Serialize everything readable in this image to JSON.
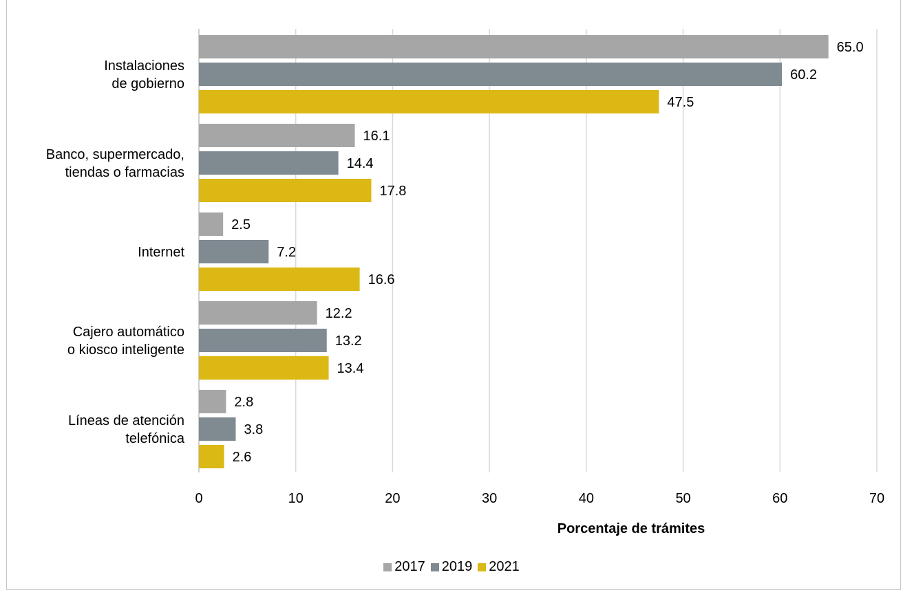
{
  "chart_data": {
    "type": "bar",
    "orientation": "horizontal",
    "categories": [
      [
        "Instalaciones",
        "de gobierno"
      ],
      [
        "Banco, supermercado,",
        "tiendas o farmacias"
      ],
      [
        "Internet"
      ],
      [
        "Cajero automático",
        "o kiosco inteligente"
      ],
      [
        "Líneas de atención",
        "telefónica"
      ]
    ],
    "series": [
      {
        "name": "2017",
        "color": "#a6a6a6",
        "values": [
          65.0,
          16.1,
          2.5,
          12.2,
          2.8
        ],
        "labels": [
          "65.0",
          "16.1",
          "2.5",
          "12.2",
          "2.8"
        ]
      },
      {
        "name": "2019",
        "color": "#7f8a91",
        "values": [
          60.2,
          14.4,
          7.2,
          13.2,
          3.8
        ],
        "labels": [
          "60.2",
          "14.4",
          "7.2",
          "13.2",
          "3.8"
        ]
      },
      {
        "name": "2021",
        "color": "#dbb813",
        "values": [
          47.5,
          17.8,
          16.6,
          13.4,
          2.6
        ],
        "labels": [
          "47.5",
          "17.8",
          "16.6",
          "13.4",
          "2.6"
        ]
      }
    ],
    "xlabel": "Porcentaje de trámites",
    "ylabel": "",
    "xlim": [
      0,
      70
    ],
    "xticks": [
      "0",
      "10",
      "20",
      "30",
      "40",
      "50",
      "60",
      "70"
    ],
    "grid": true,
    "legend_position": "bottom"
  }
}
